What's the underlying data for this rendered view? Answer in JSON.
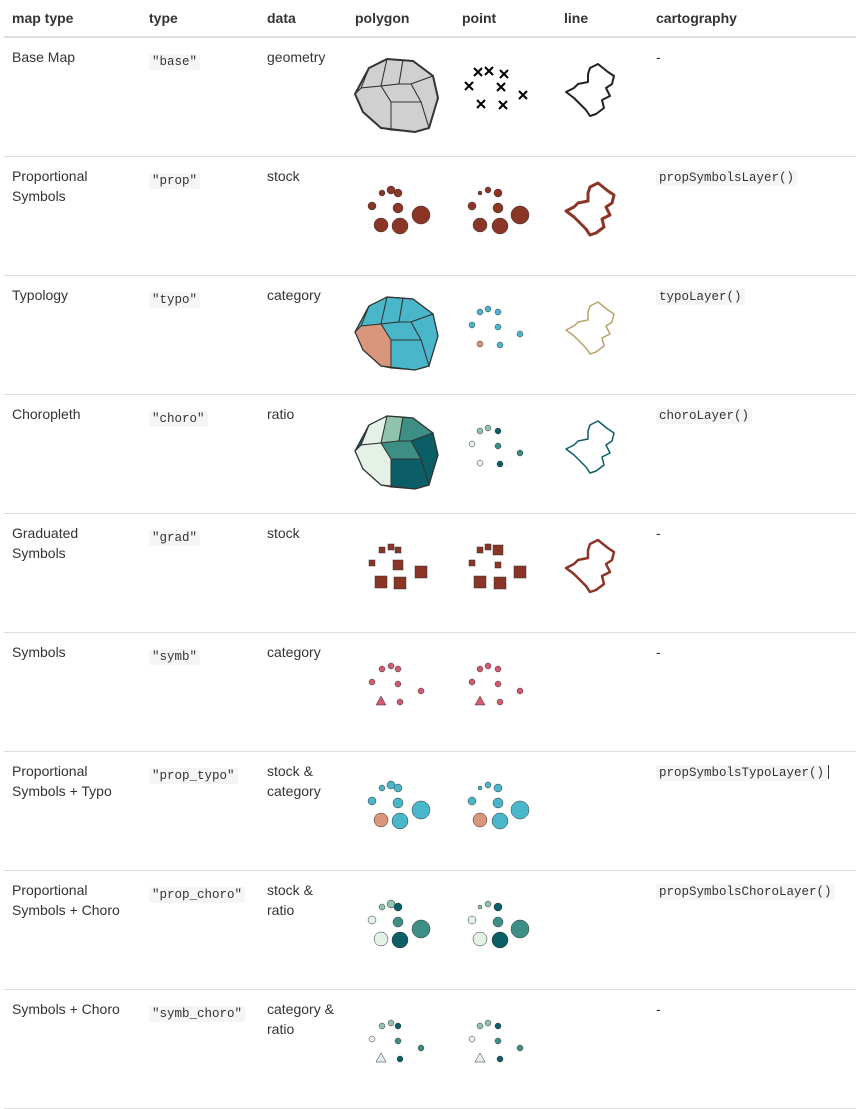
{
  "headers": [
    "map type",
    "type",
    "data",
    "polygon",
    "point",
    "line",
    "cartography"
  ],
  "colors": {
    "stock": "#8b3526",
    "typo_a": "#4ab6ca",
    "typo_b": "#d9967d",
    "choro_1": "#e4f1e6",
    "choro_2": "#8fc3ae",
    "choro_3": "#3d8f86",
    "choro_4": "#0b5d66",
    "symb": "#d45a6f",
    "grid": "#dddddd"
  },
  "rows": [
    {
      "map_type": "Base Map",
      "type": "\"base\"",
      "data": "geometry",
      "cartography": "-",
      "is_code": false,
      "kind": "base"
    },
    {
      "map_type": "Proportional Symbols",
      "type": "\"prop\"",
      "data": "stock",
      "cartography": "propSymbolsLayer()",
      "is_code": true,
      "kind": "prop"
    },
    {
      "map_type": "Typology",
      "type": "\"typo\"",
      "data": "category",
      "cartography": "typoLayer()",
      "is_code": true,
      "kind": "typo"
    },
    {
      "map_type": "Choropleth",
      "type": "\"choro\"",
      "data": "ratio",
      "cartography": "choroLayer()",
      "is_code": true,
      "kind": "choro"
    },
    {
      "map_type": "Graduated Symbols",
      "type": "\"grad\"",
      "data": "stock",
      "cartography": "-",
      "is_code": false,
      "kind": "grad"
    },
    {
      "map_type": "Symbols",
      "type": "\"symb\"",
      "data": "category",
      "cartography": "-",
      "is_code": false,
      "kind": "symb"
    },
    {
      "map_type": "Proportional Symbols + Typo",
      "type": "\"prop_typo\"",
      "data": "stock & category",
      "cartography": "propSymbolsTypoLayer()",
      "is_code": true,
      "kind": "prop_typo"
    },
    {
      "map_type": "Proportional Symbols + Choro",
      "type": "\"prop_choro\"",
      "data": "stock & ratio",
      "cartography": "propSymbolsChoroLayer()",
      "is_code": true,
      "kind": "prop_choro"
    },
    {
      "map_type": "Symbols + Choro",
      "type": "\"symb_choro\"",
      "data": "category & ratio",
      "cartography": "-",
      "is_code": false,
      "kind": "symb_choro"
    }
  ]
}
